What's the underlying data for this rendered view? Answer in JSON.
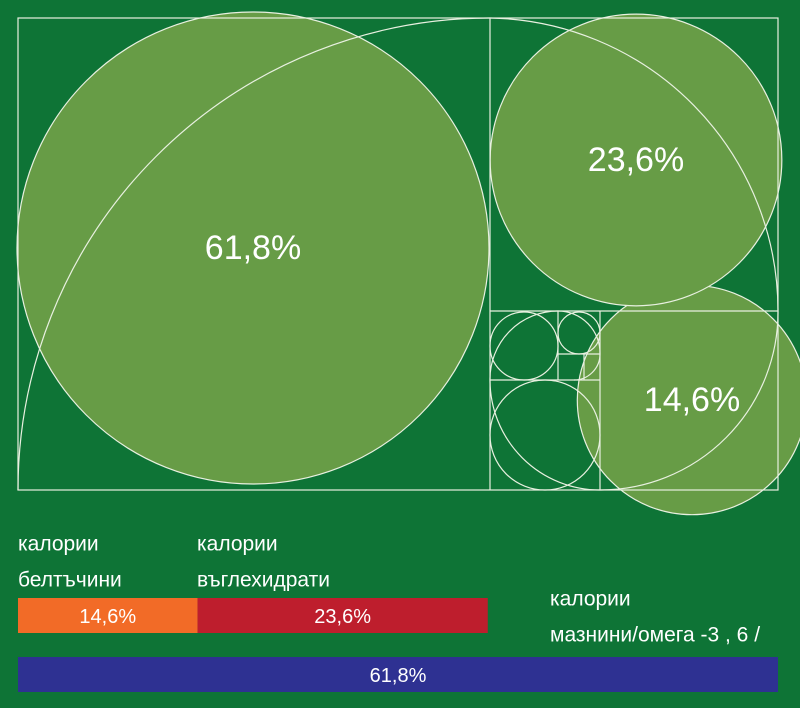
{
  "chart_data": {
    "type": "bar",
    "categories": [
      [
        "калории",
        "белтъчини"
      ],
      [
        "калории",
        "въглехидрати"
      ],
      [
        "калории",
        "мазнини/омега -3 , 6 /"
      ]
    ],
    "values": [
      14.6,
      23.6,
      61.8
    ],
    "value_labels": [
      "14,6%",
      "23,6%",
      "61,8%"
    ],
    "colors": [
      "#f26b27",
      "#be1e2d",
      "#2e3192"
    ]
  }
}
